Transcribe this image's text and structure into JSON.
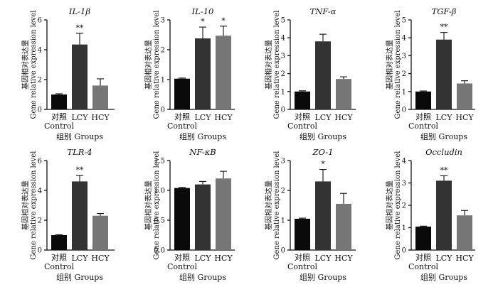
{
  "chart_data": [
    {
      "type": "bar",
      "title": "IL-1β",
      "title_base": "IL-1",
      "title_greek": "β",
      "categories": [
        "对照|Control",
        "LCY",
        "HCY"
      ],
      "values": [
        1.0,
        4.35,
        1.6
      ],
      "errors": [
        0.05,
        0.75,
        0.45
      ],
      "significance": [
        "",
        "**",
        ""
      ],
      "ylabel": "基因相对表达量|Gene relative expression level",
      "xlabel": "组别 Groups",
      "ylim": [
        0,
        6
      ],
      "yticks": [
        0,
        2,
        4,
        6
      ],
      "bar_colors": [
        "#0a0a0a",
        "#333333",
        "#777777"
      ]
    },
    {
      "type": "bar",
      "title": "IL-10",
      "title_base": "IL-10",
      "title_greek": "",
      "categories": [
        "对照|Control",
        "LCY",
        "HCY"
      ],
      "values": [
        1.03,
        2.38,
        2.47
      ],
      "errors": [
        0.02,
        0.38,
        0.32
      ],
      "significance": [
        "",
        "*",
        "*"
      ],
      "ylabel": "基因相对表达量|Gene relative expression level",
      "xlabel": "组别 Groups",
      "ylim": [
        0,
        3
      ],
      "yticks": [
        0,
        1,
        2,
        3
      ],
      "bar_colors": [
        "#0a0a0a",
        "#333333",
        "#777777"
      ]
    },
    {
      "type": "bar",
      "title": "TNF-α",
      "title_base": "TNF-",
      "title_greek": "α",
      "categories": [
        "对照|Control",
        "LCY",
        "HCY"
      ],
      "values": [
        1.0,
        3.8,
        1.7
      ],
      "errors": [
        0.04,
        0.4,
        0.12
      ],
      "significance": [
        "",
        "",
        ""
      ],
      "ylabel": "基因相对表达量|Gene relative expression level",
      "xlabel": "组别 Groups",
      "ylim": [
        0,
        5
      ],
      "yticks": [
        0,
        1,
        2,
        3,
        4,
        5
      ],
      "bar_colors": [
        "#0a0a0a",
        "#333333",
        "#777777"
      ]
    },
    {
      "type": "bar",
      "title": "TGF-β",
      "title_base": "TGF-",
      "title_greek": "β",
      "categories": [
        "对照|Control",
        "LCY",
        "HCY"
      ],
      "values": [
        1.0,
        3.9,
        1.45
      ],
      "errors": [
        0.03,
        0.4,
        0.15
      ],
      "significance": [
        "",
        "**",
        ""
      ],
      "ylabel": "基因相对表达量|Gene relative expression level",
      "xlabel": "组别 Groups",
      "ylim": [
        0,
        5
      ],
      "yticks": [
        0,
        1,
        2,
        3,
        4,
        5
      ],
      "bar_colors": [
        "#0a0a0a",
        "#333333",
        "#777777"
      ]
    },
    {
      "type": "bar",
      "title": "TLR-4",
      "title_base": "TLR-4",
      "title_greek": "",
      "categories": [
        "对照|Control",
        "LCY",
        "HCY"
      ],
      "values": [
        1.0,
        4.6,
        2.3
      ],
      "errors": [
        0.03,
        0.4,
        0.15
      ],
      "significance": [
        "",
        "**",
        ""
      ],
      "ylabel": "基因相对表达量|Gene relative expression level",
      "xlabel": "组别 Groups",
      "ylim": [
        0,
        6
      ],
      "yticks": [
        0,
        2,
        4,
        6
      ],
      "bar_colors": [
        "#0a0a0a",
        "#333333",
        "#777777"
      ]
    },
    {
      "type": "bar",
      "title": "NF-κB",
      "title_base": "NF-κB",
      "title_greek": "",
      "categories": [
        "对照|Control",
        "LCY",
        "HCY"
      ],
      "values": [
        1.04,
        1.1,
        1.2
      ],
      "errors": [
        0.01,
        0.05,
        0.12
      ],
      "significance": [
        "",
        "",
        ""
      ],
      "ylabel": "基因相对表达量|Gene relative expression level",
      "xlabel": "组别 Groups",
      "ylim": [
        0,
        1.5
      ],
      "yticks": [
        0,
        0.5,
        1.0,
        1.5
      ],
      "bar_colors": [
        "#0a0a0a",
        "#333333",
        "#777777"
      ]
    },
    {
      "type": "bar",
      "title": "ZO-1",
      "title_base": "ZO-1",
      "title_greek": "",
      "categories": [
        "对照|Control",
        "LCY",
        "HCY"
      ],
      "values": [
        1.05,
        2.3,
        1.55
      ],
      "errors": [
        0.02,
        0.4,
        0.35
      ],
      "significance": [
        "",
        "*",
        ""
      ],
      "ylabel": "基因相对表达量|Gene relative expression level",
      "xlabel": "组别 Groups",
      "ylim": [
        0,
        3
      ],
      "yticks": [
        0,
        1,
        2,
        3
      ],
      "bar_colors": [
        "#0a0a0a",
        "#333333",
        "#777777"
      ]
    },
    {
      "type": "bar",
      "title": "Occludin",
      "title_base": "Occludin",
      "title_greek": "",
      "categories": [
        "对照|Control",
        "LCY",
        "HCY"
      ],
      "values": [
        1.05,
        3.1,
        1.55
      ],
      "errors": [
        0.02,
        0.22,
        0.22
      ],
      "significance": [
        "",
        "**",
        ""
      ],
      "ylabel": "基因相对表达量|Gene relative expression level",
      "xlabel": "组别 Groups",
      "ylim": [
        0,
        4
      ],
      "yticks": [
        0,
        1,
        2,
        3,
        4
      ],
      "bar_colors": [
        "#0a0a0a",
        "#333333",
        "#777777"
      ]
    }
  ]
}
